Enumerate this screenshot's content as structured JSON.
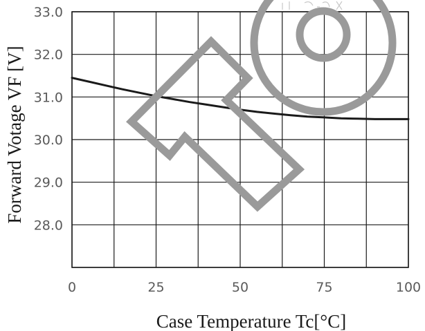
{
  "chart_data": {
    "type": "line",
    "title": "",
    "xlabel": "Case Temperature Tc[°C]",
    "ylabel": "Forward Votage VF [V]",
    "xlim": [
      0,
      100
    ],
    "ylim": [
      27,
      33
    ],
    "x_ticks": [
      0,
      25,
      50,
      75,
      100
    ],
    "x_tick_labels": [
      "0",
      "25",
      "50",
      "75",
      "100"
    ],
    "y_ticks": [
      28,
      29,
      30,
      31,
      32,
      33
    ],
    "y_tick_labels": [
      "28.0",
      "29.0",
      "30.0",
      "31.0",
      "32.0",
      "33.0"
    ],
    "x_grid": [
      0,
      12.5,
      25,
      37.5,
      50,
      62.5,
      75,
      87.5,
      100
    ],
    "y_grid": [
      27,
      28,
      29,
      30,
      31,
      32,
      33
    ],
    "grid": true,
    "legend": "none",
    "line_color": "#1a1a1a",
    "series": [
      {
        "x": [
          0,
          5,
          10,
          15,
          20,
          25,
          30,
          35,
          40,
          45,
          50,
          55,
          60,
          65,
          70,
          75,
          80,
          85,
          90,
          95,
          100
        ],
        "y": [
          31.45,
          31.36,
          31.27,
          31.18,
          31.1,
          31.02,
          30.95,
          30.88,
          30.82,
          30.76,
          30.7,
          30.65,
          30.61,
          30.57,
          30.54,
          30.52,
          30.5,
          30.49,
          30.48,
          30.48,
          30.48
        ]
      }
    ]
  },
  "watermark": {
    "description_icons": [
      "arrow-outline",
      "double-circle"
    ],
    "color": "#9a9a9a"
  }
}
